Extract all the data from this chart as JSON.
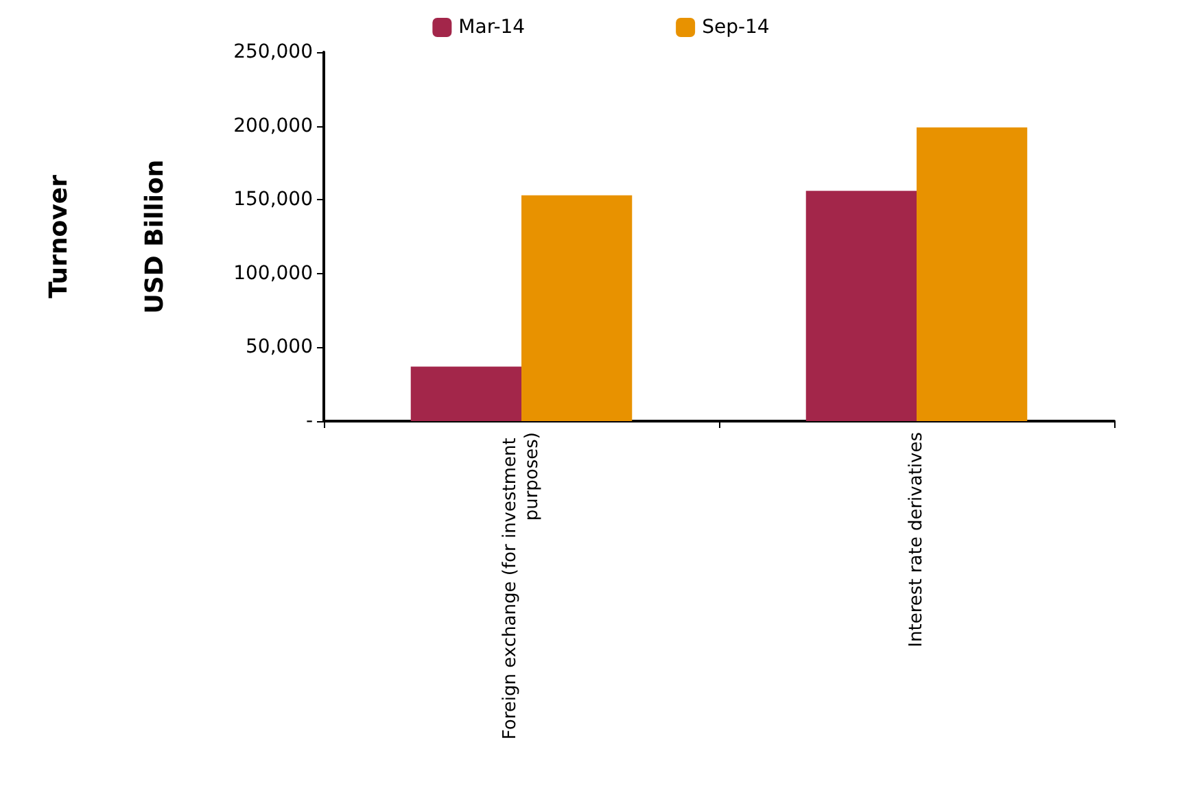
{
  "chart_data": {
    "type": "bar",
    "ylabel": "Turnover\nUSD Billion",
    "categories": [
      "Foreign exchange (for investment purposes)",
      "Interest rate derivatives"
    ],
    "series": [
      {
        "name": "Mar-14",
        "color": "#a3264a",
        "values": [
          37000,
          156000
        ]
      },
      {
        "name": "Sep-14",
        "color": "#e89200",
        "values": [
          153000,
          199000
        ]
      }
    ],
    "ylim": [
      0,
      250000
    ],
    "yticks": [
      {
        "value": 0,
        "label": "-"
      },
      {
        "value": 50000,
        "label": "50,000"
      },
      {
        "value": 100000,
        "label": "100,000"
      },
      {
        "value": 150000,
        "label": "150,000"
      },
      {
        "value": 200000,
        "label": "200,000"
      },
      {
        "value": 250000,
        "label": "250,000"
      }
    ],
    "grid": false,
    "legend": "top"
  }
}
